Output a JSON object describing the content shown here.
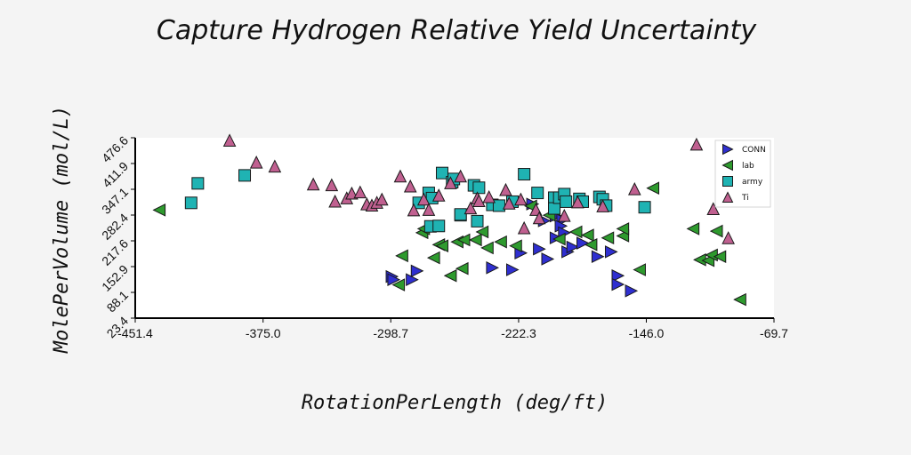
{
  "chart_data": {
    "type": "scatter",
    "title": "Capture Hydrogen Relative Yield Uncertainty",
    "xlabel": "RotationPerLength (deg/ft)",
    "ylabel": "MolePerVolume (mol/L)",
    "xlim": [
      -451.4,
      -69.7
    ],
    "ylim": [
      23.4,
      476.6
    ],
    "xticks": [
      "-451.4",
      "-375.0",
      "-298.7",
      "-222.3",
      "-146.0",
      "-69.7"
    ],
    "yticks": [
      "23.4",
      "88.1",
      "152.9",
      "217.6",
      "282.4",
      "347.1",
      "411.9",
      "476.6"
    ],
    "grid": false,
    "legend_position": "top-right",
    "series": [
      {
        "name": "CONN",
        "marker": "triangle-right",
        "color": "#2f2fd0",
        "x": [
          -298.0,
          -297.0,
          -286.0,
          -283.0,
          -238.0,
          -226.0,
          -221.0,
          -210.0,
          -214.0,
          -207.0,
          -205.0,
          -200.0,
          -200.0,
          -196.0,
          -197.0,
          -195.0,
          -193.0,
          -190.0,
          -184.0,
          -175.0,
          -167.0,
          -163.0,
          -163.0,
          -155.0
        ],
        "y": [
          128,
          120,
          120,
          142,
          150,
          145,
          187,
          197,
          310,
          268,
          172,
          225,
          280,
          270,
          255,
          238,
          190,
          202,
          212,
          178,
          190,
          130,
          108,
          92
        ]
      },
      {
        "name": "lab",
        "marker": "triangle-left",
        "color": "#2e9a2e",
        "x": [
          -437.0,
          -294.0,
          -292.0,
          -280.0,
          -279.0,
          -273.0,
          -270.0,
          -268.0,
          -263.0,
          -259.0,
          -256.0,
          -255.0,
          -248.0,
          -244.0,
          -241.0,
          -233.0,
          -224.0,
          -215.0,
          -204.0,
          -198.0,
          -188.0,
          -181.0,
          -179.0,
          -169.0,
          -160.0,
          -160.0,
          -150.0,
          -142.0,
          -118.0,
          -114.0,
          -109.0,
          -107.0,
          -104.0,
          -102.0,
          -90.0
        ],
        "y": [
          295,
          107,
          180,
          238,
          248,
          175,
          208,
          205,
          130,
          215,
          148,
          220,
          220,
          240,
          200,
          215,
          205,
          305,
          282,
          222,
          240,
          232,
          208,
          225,
          230,
          248,
          145,
          350,
          248,
          170,
          168,
          182,
          242,
          178,
          70
        ]
      },
      {
        "name": "army",
        "marker": "square",
        "color": "#1fb3b3",
        "x": [
          -418.0,
          -414.0,
          -386.0,
          -282.0,
          -276.0,
          -275.0,
          -274.0,
          -270.0,
          -268.0,
          -262.0,
          -261.0,
          -257.0,
          -257.0,
          -249.0,
          -247.0,
          -246.0,
          -238.0,
          -234.0,
          -226.0,
          -219.0,
          -211.0,
          -201.0,
          -201.0,
          -198.0,
          -195.0,
          -194.0,
          -186.0,
          -184.0,
          -174.0,
          -172.0,
          -170.0,
          -147.0
        ],
        "y": [
          313,
          362,
          382,
          313,
          338,
          254,
          325,
          255,
          388,
          365,
          373,
          282,
          284,
          357,
          267,
          351,
          308,
          306,
          316,
          385,
          338,
          326,
          299,
          326,
          335,
          316,
          323,
          316,
          328,
          322,
          306,
          302
        ]
      },
      {
        "name": "Ti",
        "marker": "triangle-up",
        "color": "#c06090",
        "x": [
          -395.0,
          -379.0,
          -368.0,
          -345.0,
          -334.0,
          -332.0,
          -325.0,
          -322.0,
          -317.0,
          -313.0,
          -310.0,
          -307.0,
          -304.0,
          -293.0,
          -287.0,
          -285.0,
          -279.0,
          -276.0,
          -270.0,
          -263.0,
          -257.0,
          -251.0,
          -247.0,
          -246.0,
          -240.0,
          -230.0,
          -228.0,
          -221.0,
          -219.0,
          -212.0,
          -210.0,
          -195.0,
          -187.0,
          -172.0,
          -153.0,
          -116.0,
          -106.0,
          -97.0
        ],
        "y": [
          470,
          415,
          405,
          360,
          358,
          317,
          325,
          337,
          340,
          310,
          307,
          314,
          322,
          380,
          355,
          295,
          322,
          296,
          332,
          363,
          380,
          300,
          325,
          318,
          328,
          346,
          312,
          322,
          250,
          296,
          275,
          281,
          315,
          305,
          348,
          460,
          298,
          225
        ]
      }
    ]
  }
}
